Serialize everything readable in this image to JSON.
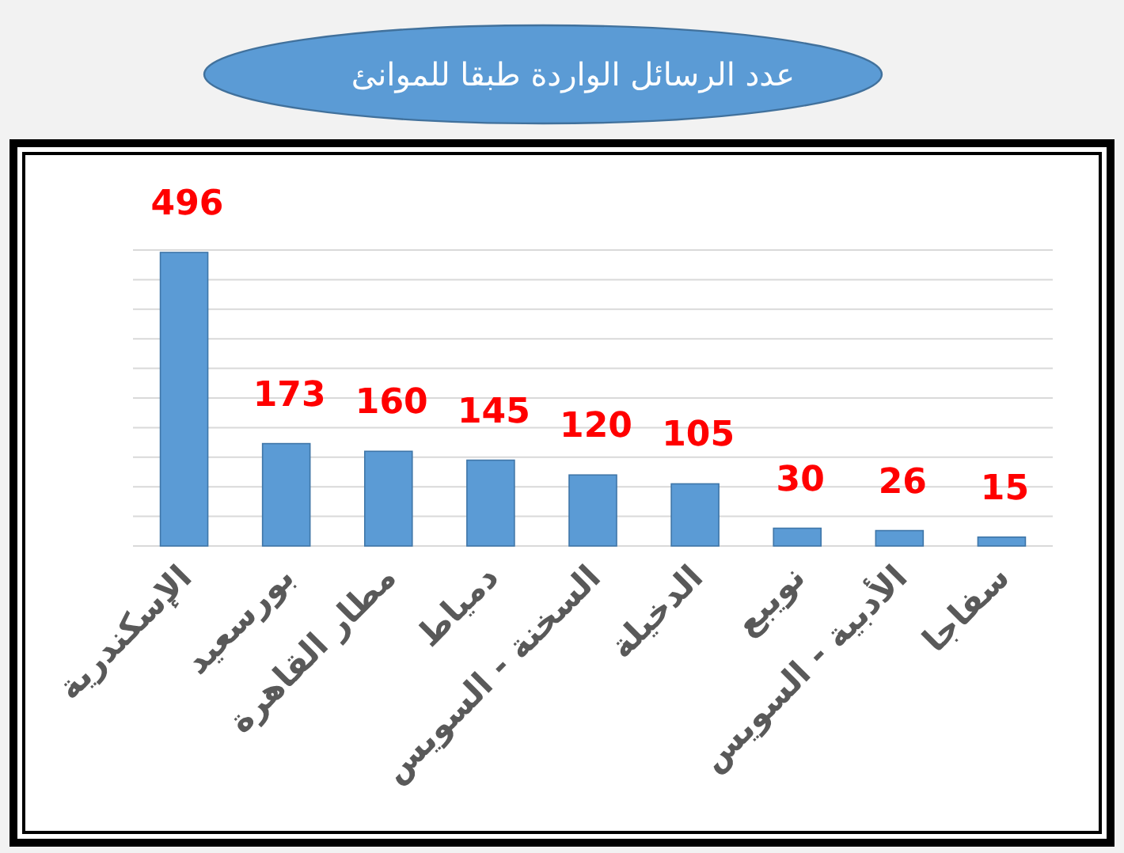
{
  "chart_data": {
    "type": "bar",
    "title": "عدد الرسائل الواردة طبقا للموانئ",
    "categories": [
      "الإسكندرية",
      "بورسعيد",
      "مطار القاهرة",
      "دمياط",
      "السخنة - السويس",
      "الدخيلة",
      "نويبع",
      "الأدبية - السويس",
      "سفاجا"
    ],
    "values": [
      496,
      173,
      160,
      145,
      120,
      105,
      30,
      26,
      15
    ],
    "color": "#5b9bd5",
    "ylim": [
      0,
      500
    ],
    "yticks": [
      {
        "value": 0,
        "label": null
      },
      {
        "value": 50,
        "label": null
      },
      {
        "value": 100,
        "label": null
      },
      {
        "value": 150,
        "label": null
      },
      {
        "value": 200,
        "label": null
      },
      {
        "value": 250,
        "label": null
      },
      {
        "value": 300,
        "label": null
      },
      {
        "value": 350,
        "label": null
      },
      {
        "value": 400,
        "label": null
      },
      {
        "value": 450,
        "label": null
      },
      {
        "value": 500,
        "label": null
      }
    ],
    "grid": "y",
    "tick_labels": "x",
    "data_labels": true
  }
}
